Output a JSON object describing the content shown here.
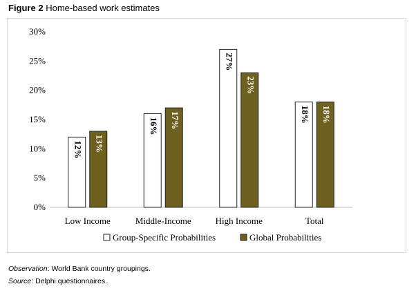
{
  "figure": {
    "label": "Figure 2",
    "title": "Home-based work estimates"
  },
  "notes": {
    "observation_label": "Observation",
    "observation_text": ": World Bank country groupings.",
    "source_label": "Source",
    "source_text": ": Delphi questionnaires."
  },
  "colors": {
    "group_fill": "#ffffff",
    "group_label": "#000000",
    "global_fill": "#6e6120",
    "global_label": "#ffffff",
    "bar_stroke": "#222222"
  },
  "chart_data": {
    "type": "bar",
    "title": "",
    "xlabel": "",
    "ylabel": "",
    "ylim": [
      0,
      30
    ],
    "yticks": [
      "0%",
      "5%",
      "10%",
      "15%",
      "20%",
      "25%",
      "30%"
    ],
    "ytick_values": [
      0,
      5,
      10,
      15,
      20,
      25,
      30
    ],
    "grid": false,
    "legend_position": "bottom",
    "categories": [
      "Low Income",
      "Middle-Income",
      "High Income",
      "Total"
    ],
    "series": [
      {
        "name": "Group-Specific Probabilities",
        "values": [
          12,
          16,
          27,
          18
        ],
        "labels": [
          "12%",
          "16%",
          "27%",
          "18%"
        ]
      },
      {
        "name": "Global Probabilities",
        "values": [
          13,
          17,
          23,
          18
        ],
        "labels": [
          "13%",
          "17%",
          "23%",
          "18%"
        ]
      }
    ]
  }
}
